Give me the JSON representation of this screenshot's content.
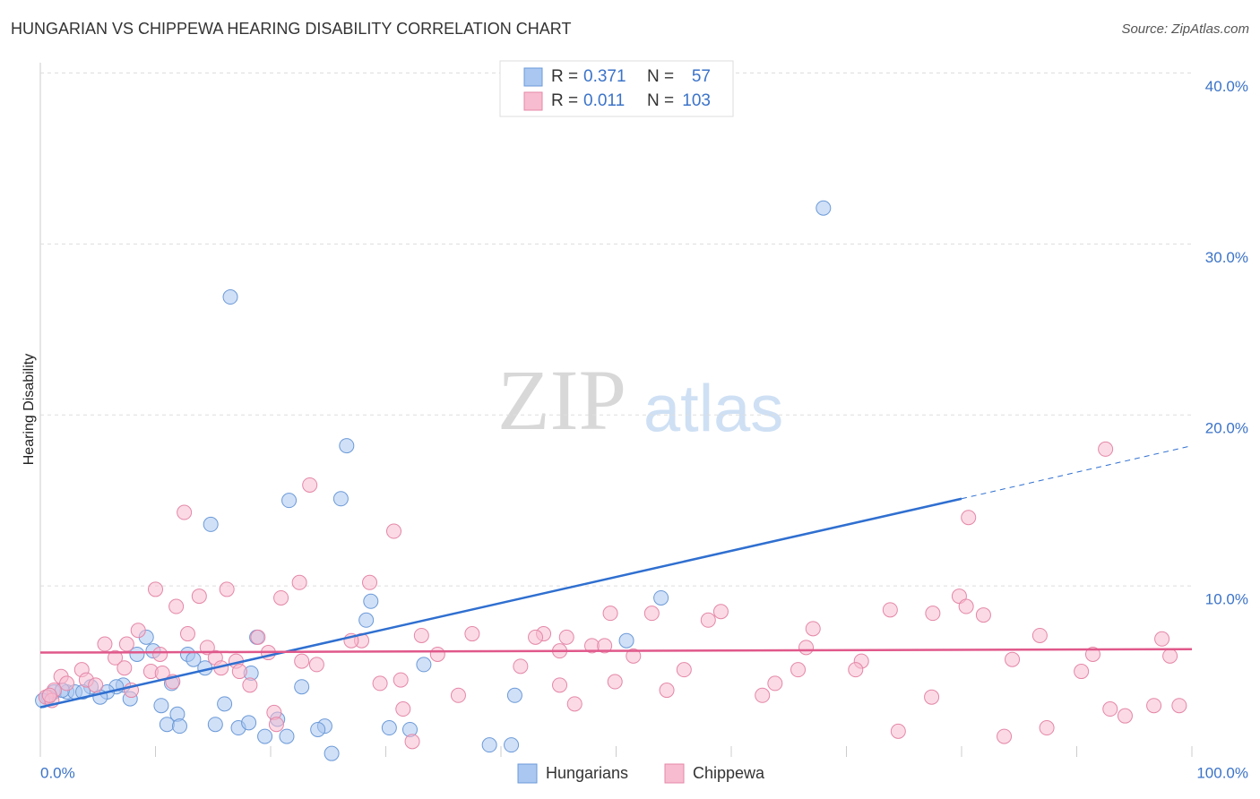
{
  "chart_data": {
    "type": "scatter",
    "title": "HUNGARIAN VS CHIPPEWA HEARING DISABILITY CORRELATION CHART",
    "source": "Source: ZipAtlas.com",
    "y_label": "Hearing Disability",
    "watermark": [
      "ZIP",
      "atlas"
    ],
    "xlim": [
      0,
      100
    ],
    "ylim": [
      0,
      40.6
    ],
    "xticks": [
      {
        "value": 0,
        "label": "0.0%"
      },
      {
        "value": 100,
        "label": "100.0%"
      }
    ],
    "xminor_ticks": [
      10,
      20,
      30,
      40,
      50,
      60,
      70,
      80,
      90
    ],
    "yticks": [
      {
        "value": 10,
        "label": "10.0%"
      },
      {
        "value": 20,
        "label": "20.0%"
      },
      {
        "value": 30,
        "label": "30.0%"
      },
      {
        "value": 40,
        "label": "40.0%"
      }
    ],
    "grid": true,
    "stat_labels": {
      "r": "R =",
      "n": "N ="
    },
    "series": [
      {
        "name": "Hungarians",
        "color": "#a9c7f0",
        "edge": "#6c9ad8",
        "line_color": "#2f6fd0",
        "r": 0.371,
        "n": 57,
        "trend": {
          "x": [
            0,
            80
          ],
          "y": [
            2.9,
            15.1
          ]
        },
        "trend_extension": {
          "x": [
            80,
            100
          ],
          "y": [
            15.1,
            18.2
          ]
        },
        "x": [
          68.0,
          16.5,
          26.6,
          21.6,
          26.1,
          14.8,
          28.7,
          53.9,
          28.3,
          18.8,
          9.2,
          8.4,
          9.8,
          12.8,
          13.3,
          14.3,
          33.3,
          50.9,
          18.3,
          22.7,
          11.4,
          7.2,
          6.6,
          4.4,
          5.8,
          5.2,
          7.8,
          2.3,
          3.0,
          3.7,
          1.2,
          0.7,
          0.2,
          10.5,
          16.0,
          41.2,
          11.9,
          11.0,
          12.1,
          15.2,
          17.2,
          18.1,
          20.6,
          19.5,
          21.4,
          24.7,
          24.1,
          30.3,
          32.1,
          25.3,
          39.0,
          40.9,
          1.9
        ],
        "values": [
          32.1,
          26.9,
          18.2,
          15.0,
          15.1,
          13.6,
          9.1,
          9.3,
          8.0,
          7.0,
          7.0,
          6.0,
          6.2,
          6.0,
          5.7,
          5.2,
          5.4,
          6.8,
          4.9,
          4.1,
          4.3,
          4.2,
          4.1,
          4.1,
          3.8,
          3.5,
          3.4,
          3.8,
          3.8,
          3.8,
          3.8,
          3.5,
          3.3,
          3.0,
          3.1,
          3.6,
          2.5,
          1.9,
          1.8,
          1.9,
          1.7,
          2.0,
          2.2,
          1.2,
          1.2,
          1.8,
          1.6,
          1.7,
          1.6,
          0.2,
          0.7,
          0.7,
          3.9
        ]
      },
      {
        "name": "Chippewa",
        "color": "#f7bccf",
        "edge": "#e487a8",
        "line_color": "#e0588a",
        "r": 0.011,
        "n": 103,
        "trend": {
          "x": [
            0,
            100
          ],
          "y": [
            6.1,
            6.3
          ]
        },
        "x": [
          92.5,
          23.4,
          12.5,
          30.7,
          80.6,
          10.0,
          16.2,
          22.5,
          28.6,
          20.9,
          13.8,
          11.8,
          79.8,
          80.4,
          81.9,
          73.8,
          77.5,
          59.1,
          53.1,
          49.5,
          58.0,
          67.1,
          8.5,
          12.8,
          33.1,
          37.5,
          43.7,
          45.7,
          43.0,
          86.8,
          97.4,
          18.9,
          27.9,
          27.0,
          5.6,
          7.5,
          14.5,
          47.9,
          49.0,
          66.5,
          45.1,
          10.4,
          19.8,
          51.5,
          34.5,
          91.4,
          98.1,
          6.5,
          15.2,
          17.0,
          22.7,
          84.4,
          71.3,
          24.0,
          41.7,
          15.7,
          7.3,
          3.6,
          9.6,
          17.3,
          55.9,
          65.8,
          70.8,
          90.4,
          10.6,
          1.8,
          4.0,
          2.3,
          11.5,
          31.3,
          49.9,
          63.8,
          29.5,
          45.1,
          18.2,
          4.8,
          7.9,
          54.4,
          1.2,
          36.3,
          62.7,
          77.4,
          0.5,
          46.4,
          96.7,
          98.9,
          31.5,
          92.9,
          94.2,
          20.3,
          20.5,
          87.4,
          74.5,
          83.7,
          32.3,
          1.0,
          0.8
        ],
        "values": [
          18.0,
          15.9,
          14.3,
          13.2,
          14.0,
          9.8,
          9.8,
          10.2,
          10.2,
          9.3,
          9.4,
          8.8,
          9.4,
          8.8,
          8.3,
          8.6,
          8.4,
          8.5,
          8.4,
          8.4,
          8.0,
          7.5,
          7.4,
          7.2,
          7.1,
          7.2,
          7.2,
          7.0,
          7.0,
          7.1,
          6.9,
          7.0,
          6.8,
          6.8,
          6.6,
          6.6,
          6.4,
          6.5,
          6.5,
          6.4,
          6.2,
          6.0,
          6.1,
          5.9,
          6.0,
          6.0,
          5.9,
          5.8,
          5.8,
          5.6,
          5.6,
          5.7,
          5.6,
          5.4,
          5.3,
          5.2,
          5.2,
          5.1,
          5.0,
          5.0,
          5.1,
          5.1,
          5.1,
          5.0,
          4.9,
          4.7,
          4.5,
          4.3,
          4.4,
          4.5,
          4.4,
          4.3,
          4.3,
          4.2,
          4.2,
          4.2,
          3.9,
          3.9,
          3.9,
          3.6,
          3.6,
          3.5,
          3.5,
          3.1,
          3.0,
          3.0,
          2.8,
          2.8,
          2.4,
          2.6,
          1.9,
          1.7,
          1.5,
          1.2,
          0.9,
          3.3,
          3.6
        ]
      }
    ]
  }
}
